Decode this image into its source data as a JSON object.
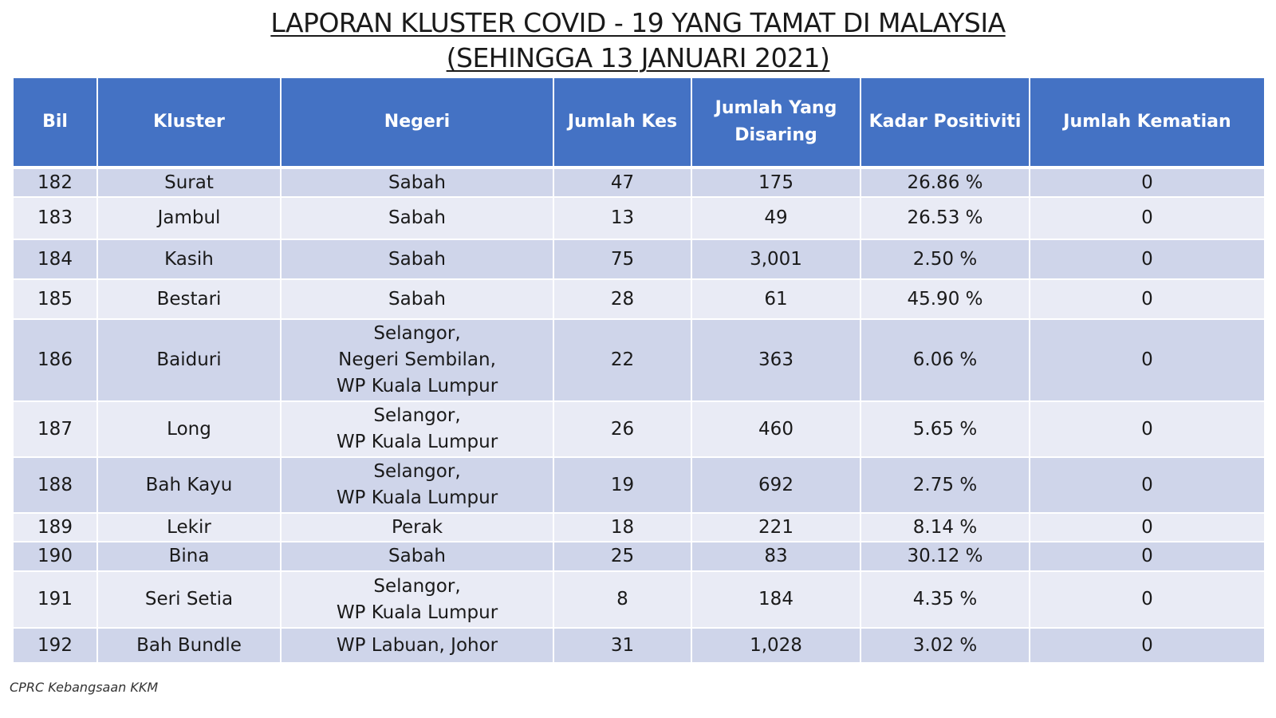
{
  "title": {
    "line1": "LAPORAN KLUSTER COVID - 19 YANG TAMAT DI MALAYSIA",
    "line2": "(SEHINGGA 13 JANUARI 2021)"
  },
  "table": {
    "headers": {
      "bil": "Bil",
      "kluster": "Kluster",
      "negeri": "Negeri",
      "jumlah_kes": "Jumlah Kes",
      "jumlah_disaring_1": "Jumlah Yang",
      "jumlah_disaring_2": "Disaring",
      "kadar_positiviti": "Kadar Positiviti",
      "jumlah_kematian": "Jumlah Kematian"
    },
    "rows": [
      {
        "bil": "182",
        "kluster": "Surat",
        "negeri": [
          "Sabah"
        ],
        "kes": "47",
        "disaring": "175",
        "positiviti": "26.86 %",
        "kematian": "0"
      },
      {
        "bil": "183",
        "kluster": "Jambul",
        "negeri": [
          "Sabah"
        ],
        "kes": "13",
        "disaring": "49",
        "positiviti": "26.53 %",
        "kematian": "0"
      },
      {
        "bil": "184",
        "kluster": "Kasih",
        "negeri": [
          "Sabah"
        ],
        "kes": "75",
        "disaring": "3,001",
        "positiviti": "2.50 %",
        "kematian": "0"
      },
      {
        "bil": "185",
        "kluster": "Bestari",
        "negeri": [
          "Sabah"
        ],
        "kes": "28",
        "disaring": "61",
        "positiviti": "45.90 %",
        "kematian": "0"
      },
      {
        "bil": "186",
        "kluster": "Baiduri",
        "negeri": [
          "Selangor,",
          "Negeri Sembilan,",
          "WP Kuala Lumpur"
        ],
        "kes": "22",
        "disaring": "363",
        "positiviti": "6.06 %",
        "kematian": "0"
      },
      {
        "bil": "187",
        "kluster": "Long",
        "negeri": [
          "Selangor,",
          "WP Kuala Lumpur"
        ],
        "kes": "26",
        "disaring": "460",
        "positiviti": "5.65 %",
        "kematian": "0"
      },
      {
        "bil": "188",
        "kluster": "Bah Kayu",
        "negeri": [
          "Selangor,",
          "WP Kuala Lumpur"
        ],
        "kes": "19",
        "disaring": "692",
        "positiviti": "2.75 %",
        "kematian": "0"
      },
      {
        "bil": "189",
        "kluster": "Lekir",
        "negeri": [
          "Perak"
        ],
        "kes": "18",
        "disaring": "221",
        "positiviti": "8.14 %",
        "kematian": "0"
      },
      {
        "bil": "190",
        "kluster": "Bina",
        "negeri": [
          "Sabah"
        ],
        "kes": "25",
        "disaring": "83",
        "positiviti": "30.12 %",
        "kematian": "0"
      },
      {
        "bil": "191",
        "kluster": "Seri Setia",
        "negeri": [
          "Selangor,",
          "WP Kuala Lumpur"
        ],
        "kes": "8",
        "disaring": "184",
        "positiviti": "4.35 %",
        "kematian": "0"
      },
      {
        "bil": "192",
        "kluster": "Bah Bundle",
        "negeri": [
          "WP Labuan, Johor"
        ],
        "kes": "31",
        "disaring": "1,028",
        "positiviti": "3.02 %",
        "kematian": "0"
      }
    ]
  },
  "colors": {
    "header_bg": "#4472c4",
    "row_band": "#cfd5ea",
    "row_plain": "#e9ebf5"
  },
  "footer": {
    "source": "CPRC Kebangsaan KKM"
  }
}
